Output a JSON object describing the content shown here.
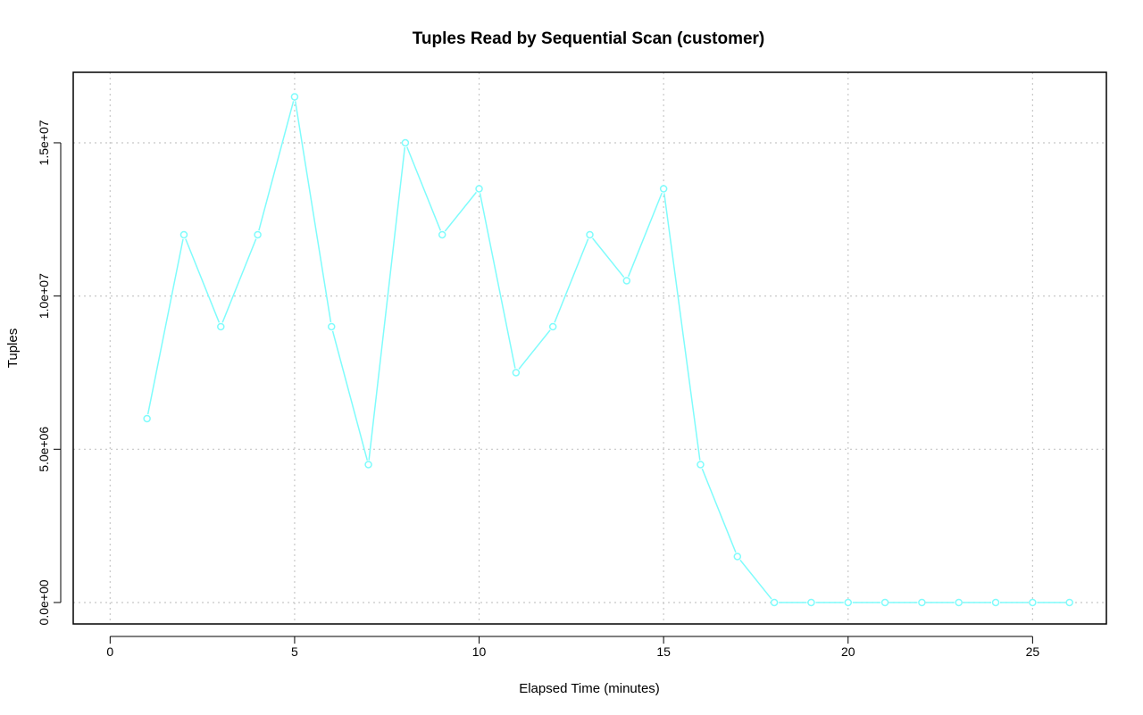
{
  "chart_data": {
    "type": "line",
    "title": "Tuples Read by Sequential Scan (customer)",
    "xlabel": "Elapsed Time (minutes)",
    "ylabel": "Tuples",
    "xlim": [
      -1,
      27
    ],
    "ylim": [
      -700000,
      17300000
    ],
    "x_ticks": [
      0,
      5,
      10,
      15,
      20,
      25
    ],
    "x_tick_labels": [
      "0",
      "5",
      "10",
      "15",
      "20",
      "25"
    ],
    "y_ticks": [
      0,
      5000000,
      10000000,
      15000000
    ],
    "y_tick_labels": [
      "0.0e+00",
      "5.0e+06",
      "1.0e+07",
      "1.5e+07"
    ],
    "grid": true,
    "series": [
      {
        "color": "#7ffcfc",
        "marker": "open-circle",
        "x": [
          1,
          2,
          3,
          4,
          5,
          6,
          7,
          8,
          9,
          10,
          11,
          12,
          13,
          14,
          15,
          16,
          17,
          18,
          19,
          20,
          21,
          22,
          23,
          24,
          25,
          26
        ],
        "values": [
          6000000,
          12000000,
          9000000,
          12000000,
          16500000,
          9000000,
          4500000,
          15000000,
          12000000,
          13500000,
          7500000,
          9000000,
          12000000,
          10500000,
          13500000,
          4500000,
          1500000,
          0,
          0,
          0,
          0,
          0,
          0,
          0,
          0,
          0
        ]
      }
    ]
  }
}
